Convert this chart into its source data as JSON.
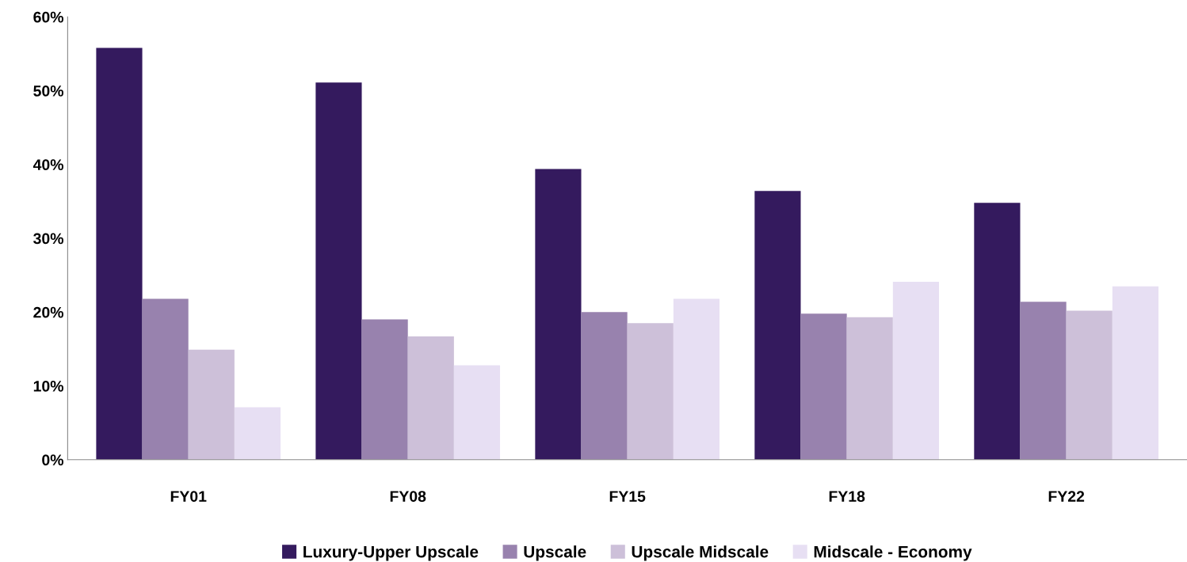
{
  "chart_data": {
    "type": "bar",
    "categories": [
      "FY01",
      "FY08",
      "FY15",
      "FY18",
      "FY22"
    ],
    "series": [
      {
        "name": "Luxury-Upper Upscale",
        "color": "#341a5e",
        "values": [
          55.8,
          51.1,
          39.4,
          36.4,
          34.8
        ]
      },
      {
        "name": "Upscale",
        "color": "#9882ae",
        "values": [
          21.8,
          19.0,
          20.0,
          19.8,
          21.4
        ]
      },
      {
        "name": "Upscale Midscale",
        "color": "#cdc0d9",
        "values": [
          14.9,
          16.7,
          18.5,
          19.3,
          20.2
        ]
      },
      {
        "name": "Midscale - Economy",
        "color": "#e7dff3",
        "values": [
          7.1,
          12.8,
          21.8,
          24.1,
          23.5
        ]
      }
    ],
    "ylim": [
      0,
      60
    ],
    "yticks": [
      {
        "value": 0,
        "label": "0%"
      },
      {
        "value": 10,
        "label": "10%"
      },
      {
        "value": 20,
        "label": "20%"
      },
      {
        "value": 30,
        "label": "30%"
      },
      {
        "value": 40,
        "label": "40%"
      },
      {
        "value": 50,
        "label": "50%"
      },
      {
        "value": 60,
        "label": "60%"
      }
    ],
    "grid": false,
    "legend": "bottom"
  }
}
